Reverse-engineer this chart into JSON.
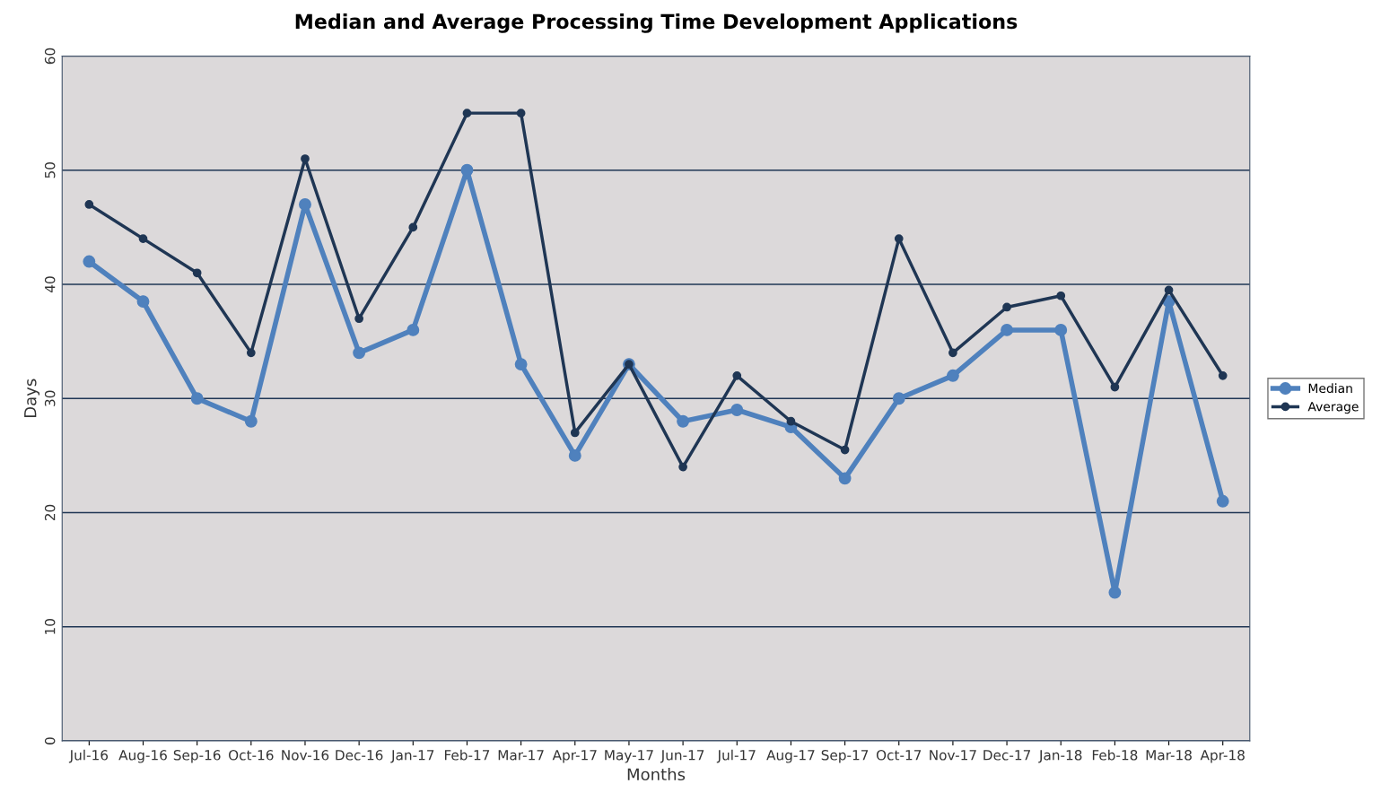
{
  "chart_data": {
    "type": "line",
    "title": "Median and Average Processing Time Development Applications",
    "xlabel": "Months",
    "ylabel": "Days",
    "categories": [
      "Jul-16",
      "Aug-16",
      "Sep-16",
      "Oct-16",
      "Nov-16",
      "Dec-16",
      "Jan-17",
      "Feb-17",
      "Mar-17",
      "Apr-17",
      "May-17",
      "Jun-17",
      "Jul-17",
      "Aug-17",
      "Sep-17",
      "Oct-17",
      "Nov-17",
      "Dec-17",
      "Jan-18",
      "Feb-18",
      "Mar-18",
      "Apr-18"
    ],
    "series": [
      {
        "name": "Median",
        "color": "#4f81bd",
        "values": [
          42,
          38.5,
          30,
          28,
          47,
          34,
          36,
          50,
          33,
          25,
          33,
          28,
          29,
          27.5,
          23,
          30,
          32,
          36,
          36,
          13,
          38.5,
          21
        ]
      },
      {
        "name": "Average",
        "color": "#1f3654",
        "values": [
          47,
          44,
          41,
          34,
          51,
          37,
          45,
          55,
          55,
          27,
          33,
          24,
          32,
          28,
          25.5,
          44,
          34,
          38,
          39,
          31,
          39.5,
          32
        ]
      }
    ],
    "ylim": [
      0,
      60
    ],
    "yticks": [
      0,
      10,
      20,
      30,
      40,
      50,
      60
    ],
    "grid": "y",
    "legend": "right",
    "marker": "circle",
    "line_style": "solid"
  }
}
